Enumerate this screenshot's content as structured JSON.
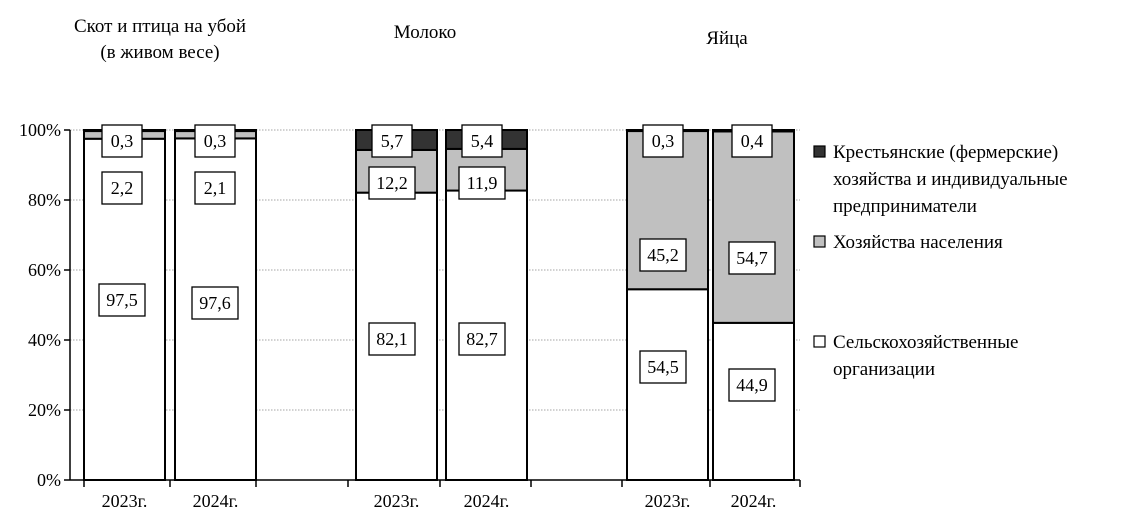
{
  "colors": {
    "farmers": "#333333",
    "households": "#c0c0c0",
    "agri_orgs": "#ffffff",
    "gridline": "#888888"
  },
  "chart_data": {
    "type": "bar",
    "stacked": true,
    "percent": true,
    "ylim": [
      0,
      100
    ],
    "yticks": [
      "0%",
      "20%",
      "40%",
      "60%",
      "80%",
      "100%"
    ],
    "ytick_values": [
      0,
      20,
      40,
      60,
      80,
      100
    ],
    "grid": "horizontal dotted",
    "legend_position": "right",
    "groups": [
      {
        "title": [
          "Скот и птица на убой",
          "(в живом весе)"
        ],
        "categories": [
          "2023г.",
          "2024г."
        ]
      },
      {
        "title": [
          "Молоко"
        ],
        "categories": [
          "2023г.",
          "2024г."
        ]
      },
      {
        "title": [
          "Яйца"
        ],
        "categories": [
          "2023г.",
          "2024г."
        ]
      }
    ],
    "series": [
      {
        "name": "Сельскохозяйственные организации",
        "legend_lines": [
          "Сельскохозяйственные",
          "организации"
        ],
        "color": "#ffffff",
        "values": [
          97.5,
          97.6,
          82.1,
          82.7,
          54.5,
          44.9
        ],
        "labels": [
          "97,5",
          "97,6",
          "82,1",
          "82,7",
          "54,5",
          "44,9"
        ]
      },
      {
        "name": "Хозяйства населения",
        "legend_lines": [
          "Хозяйства населения"
        ],
        "color": "#c0c0c0",
        "values": [
          2.2,
          2.1,
          12.2,
          11.9,
          45.2,
          54.7
        ],
        "labels": [
          "2,2",
          "2,1",
          "12,2",
          "11,9",
          "45,2",
          "54,7"
        ]
      },
      {
        "name": "Крестьянские (фермерские) хозяйства и индивидуальные предприниматели",
        "legend_lines": [
          "Крестьянские (фермерские)",
          "хозяйства и индивидуальные",
          "предприниматели"
        ],
        "color": "#333333",
        "values": [
          0.3,
          0.3,
          5.7,
          5.4,
          0.3,
          0.4
        ],
        "labels": [
          "0,3",
          "0,3",
          "5,7",
          "5,4",
          "0,3",
          "0,4"
        ]
      }
    ]
  }
}
